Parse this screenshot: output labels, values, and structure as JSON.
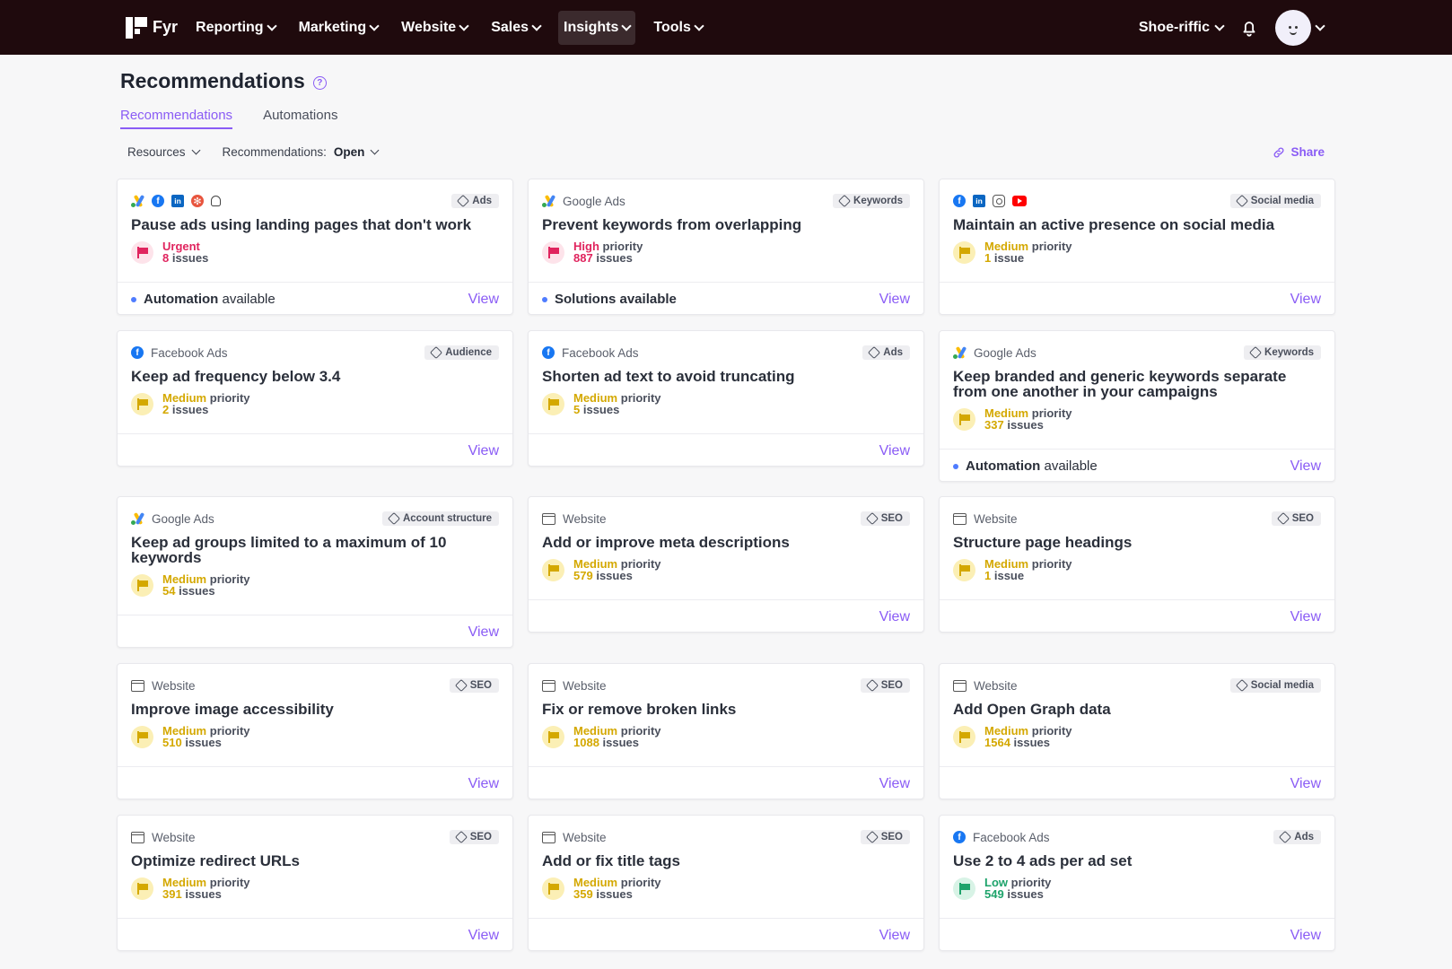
{
  "brand": {
    "name": "Fyr"
  },
  "nav": [
    {
      "label": "Reporting",
      "active": false
    },
    {
      "label": "Marketing",
      "active": false
    },
    {
      "label": "Website",
      "active": false
    },
    {
      "label": "Sales",
      "active": false
    },
    {
      "label": "Insights",
      "active": true
    },
    {
      "label": "Tools",
      "active": false
    }
  ],
  "account": {
    "name": "Shoe-riffic"
  },
  "page": {
    "title": "Recommendations",
    "help_icon": "?"
  },
  "tabs": [
    {
      "label": "Recommendations"
    },
    {
      "label": "Automations"
    }
  ],
  "filters": {
    "resources": "Resources",
    "recs_prefix": "Recommendations:",
    "recs_value": "Open",
    "share": "Share"
  },
  "colors": {
    "accent": "#8a5cf5",
    "urgent": "#e0245e",
    "high": "#e0245e",
    "medium": "#d4a800",
    "low": "#1ea36b",
    "nav_bg": "#1f0a0d"
  },
  "cards": [
    {
      "src": "",
      "icons": [
        "google-ads-icon",
        "facebook-icon",
        "linkedin-icon",
        "pinterest-icon",
        "snapchat-icon"
      ],
      "tag": "Ads",
      "title": "Pause ads using landing pages that don't work",
      "priority": "Urgent",
      "priority_word": "",
      "level": "urgent",
      "count": "8",
      "unit": "issues",
      "footer": "Automation available",
      "footer_bold": "Automation",
      "footer_rest": " available",
      "view": "View"
    },
    {
      "src": "Google Ads",
      "icons": [
        "google-ads-icon"
      ],
      "tag": "Keywords",
      "title": "Prevent keywords from overlapping",
      "priority": "High",
      "priority_word": "priority",
      "level": "high",
      "count": "887",
      "unit": "issues",
      "footer_bold": "Solutions available",
      "footer_rest": "",
      "view": "View"
    },
    {
      "src": "",
      "icons": [
        "facebook-icon",
        "linkedin-icon",
        "instagram-icon",
        "youtube-icon"
      ],
      "tag": "Social media",
      "title": "Maintain an active presence on social media",
      "priority": "Medium",
      "priority_word": "priority",
      "level": "medium",
      "count": "1",
      "unit": "issue",
      "footer_bold": "",
      "footer_rest": "",
      "view": "View"
    },
    {
      "src": "Facebook Ads",
      "icons": [
        "facebook-icon"
      ],
      "tag": "Audience",
      "title": "Keep ad frequency below 3.4",
      "priority": "Medium",
      "priority_word": "priority",
      "level": "medium",
      "count": "2",
      "unit": "issues",
      "footer_bold": "",
      "footer_rest": "",
      "view": "View"
    },
    {
      "src": "Facebook Ads",
      "icons": [
        "facebook-icon"
      ],
      "tag": "Ads",
      "title": "Shorten ad text to avoid truncating",
      "priority": "Medium",
      "priority_word": "priority",
      "level": "medium",
      "count": "5",
      "unit": "issues",
      "footer_bold": "",
      "footer_rest": "",
      "view": "View"
    },
    {
      "src": "Google Ads",
      "icons": [
        "google-ads-icon"
      ],
      "tag": "Keywords",
      "title": "Keep branded and generic keywords separate from one another in your campaigns",
      "priority": "Medium",
      "priority_word": "priority",
      "level": "medium",
      "count": "337",
      "unit": "issues",
      "footer_bold": "Automation",
      "footer_rest": " available",
      "view": "View"
    },
    {
      "src": "Google Ads",
      "icons": [
        "google-ads-icon"
      ],
      "tag": "Account structure",
      "title": "Keep ad groups limited to a maximum of 10 keywords",
      "priority": "Medium",
      "priority_word": "priority",
      "level": "medium",
      "count": "54",
      "unit": "issues",
      "footer_bold": "",
      "footer_rest": "",
      "view": "View"
    },
    {
      "src": "Website",
      "icons": [
        "website-icon"
      ],
      "tag": "SEO",
      "title": "Add or improve meta descriptions",
      "priority": "Medium",
      "priority_word": "priority",
      "level": "medium",
      "count": "579",
      "unit": "issues",
      "footer_bold": "",
      "footer_rest": "",
      "view": "View"
    },
    {
      "src": "Website",
      "icons": [
        "website-icon"
      ],
      "tag": "SEO",
      "title": "Structure page headings",
      "priority": "Medium",
      "priority_word": "priority",
      "level": "medium",
      "count": "1",
      "unit": "issue",
      "footer_bold": "",
      "footer_rest": "",
      "view": "View"
    },
    {
      "src": "Website",
      "icons": [
        "website-icon"
      ],
      "tag": "SEO",
      "title": "Improve image accessibility",
      "priority": "Medium",
      "priority_word": "priority",
      "level": "medium",
      "count": "510",
      "unit": "issues",
      "footer_bold": "",
      "footer_rest": "",
      "view": "View"
    },
    {
      "src": "Website",
      "icons": [
        "website-icon"
      ],
      "tag": "SEO",
      "title": "Fix or remove broken links",
      "priority": "Medium",
      "priority_word": "priority",
      "level": "medium",
      "count": "1088",
      "unit": "issues",
      "footer_bold": "",
      "footer_rest": "",
      "view": "View"
    },
    {
      "src": "Website",
      "icons": [
        "website-icon"
      ],
      "tag": "Social media",
      "title": "Add Open Graph data",
      "priority": "Medium",
      "priority_word": "priority",
      "level": "medium",
      "count": "1564",
      "unit": "issues",
      "footer_bold": "",
      "footer_rest": "",
      "view": "View"
    },
    {
      "src": "Website",
      "icons": [
        "website-icon"
      ],
      "tag": "SEO",
      "title": "Optimize redirect URLs",
      "priority": "Medium",
      "priority_word": "priority",
      "level": "medium",
      "count": "391",
      "unit": "issues",
      "footer_bold": "",
      "footer_rest": "",
      "view": "View"
    },
    {
      "src": "Website",
      "icons": [
        "website-icon"
      ],
      "tag": "SEO",
      "title": "Add or fix title tags",
      "priority": "Medium",
      "priority_word": "priority",
      "level": "medium",
      "count": "359",
      "unit": "issues",
      "footer_bold": "",
      "footer_rest": "",
      "view": "View"
    },
    {
      "src": "Facebook Ads",
      "icons": [
        "facebook-icon"
      ],
      "tag": "Ads",
      "title": "Use 2 to 4 ads per ad set",
      "priority": "Low",
      "priority_word": "priority",
      "level": "low",
      "count": "549",
      "unit": "issues",
      "footer_bold": "",
      "footer_rest": "",
      "view": "View"
    }
  ]
}
